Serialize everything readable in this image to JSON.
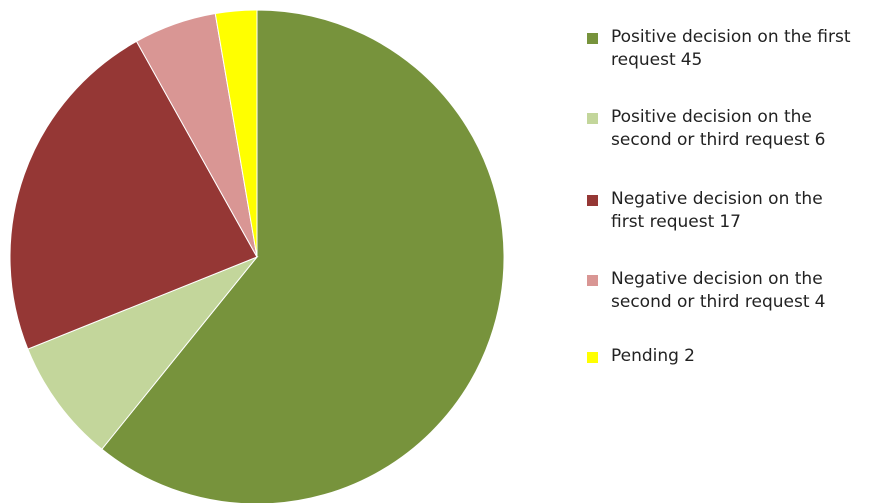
{
  "chart_data": {
    "type": "pie",
    "categories": [
      "Positive decision on the first request",
      "Positive decision on the second or third request",
      "Negative decision on the first request",
      "Negative decision on the second or third request",
      "Pending"
    ],
    "values": [
      45,
      6,
      17,
      4,
      2
    ],
    "colors": [
      "#77933c",
      "#c3d69b",
      "#953735",
      "#d99694",
      "#ffff00"
    ],
    "legend": "right"
  }
}
